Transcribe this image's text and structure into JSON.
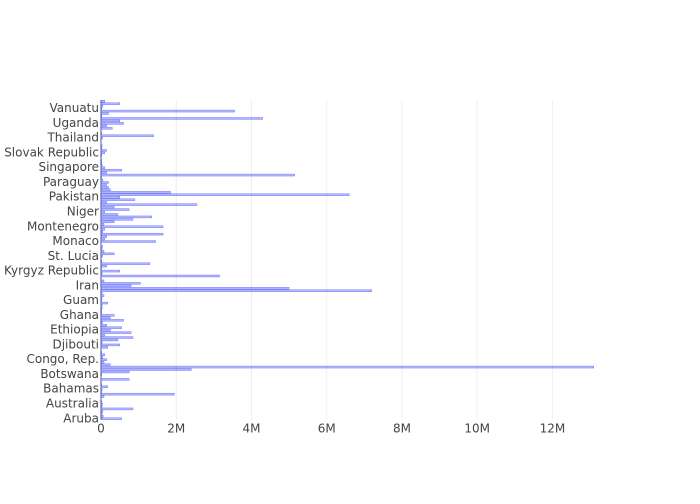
{
  "chart_data": {
    "type": "barh",
    "categories": [
      "Aruba",
      null,
      null,
      null,
      null,
      null,
      "Australia",
      null,
      null,
      null,
      null,
      null,
      "Bahamas",
      null,
      null,
      null,
      null,
      null,
      "Botswana",
      null,
      null,
      null,
      null,
      null,
      "Congo, Rep.",
      null,
      null,
      null,
      null,
      null,
      "Djibouti",
      null,
      null,
      null,
      null,
      null,
      "Ethiopia",
      null,
      null,
      null,
      null,
      null,
      "Ghana",
      null,
      null,
      null,
      null,
      null,
      "Guam",
      null,
      null,
      null,
      null,
      null,
      "Iran",
      null,
      null,
      null,
      null,
      null,
      "Kyrgyz Republic",
      null,
      null,
      null,
      null,
      null,
      "St. Lucia",
      null,
      null,
      null,
      null,
      null,
      "Monaco",
      null,
      null,
      null,
      null,
      null,
      "Montenegro",
      null,
      null,
      null,
      null,
      null,
      "Niger",
      null,
      null,
      null,
      null,
      null,
      "Pakistan",
      null,
      null,
      null,
      null,
      null,
      "Paraguay",
      null,
      null,
      null,
      null,
      null,
      "Singapore",
      null,
      null,
      null,
      null,
      null,
      "Slovak Republic",
      null,
      null,
      null,
      null,
      null,
      "Thailand",
      null,
      null,
      null,
      null,
      null,
      "Uganda",
      null,
      null,
      null,
      null,
      null,
      "Vanuatu",
      null,
      null,
      null
    ],
    "values": [
      550000,
      60000,
      30000,
      50000,
      850000,
      30000,
      40000,
      20000,
      10000,
      80000,
      1950000,
      20000,
      30000,
      180000,
      20000,
      10000,
      750000,
      10000,
      20000,
      750000,
      2400000,
      13100000,
      250000,
      80000,
      150000,
      50000,
      100000,
      20000,
      10000,
      180000,
      500000,
      30000,
      450000,
      850000,
      100000,
      800000,
      250000,
      550000,
      150000,
      40000,
      600000,
      250000,
      350000,
      20000,
      20000,
      30000,
      30000,
      180000,
      20000,
      30000,
      80000,
      30000,
      7200000,
      5000000,
      800000,
      1050000,
      80000,
      10000,
      3150000,
      30000,
      500000,
      20000,
      150000,
      1300000,
      20000,
      10000,
      40000,
      350000,
      80000,
      30000,
      40000,
      10000,
      1450000,
      100000,
      150000,
      1650000,
      50000,
      100000,
      1650000,
      80000,
      350000,
      850000,
      1350000,
      450000,
      100000,
      750000,
      350000,
      2550000,
      150000,
      900000,
      500000,
      6600000,
      1850000,
      250000,
      200000,
      150000,
      200000,
      50000,
      20000,
      5150000,
      150000,
      550000,
      100000,
      30000,
      20000,
      20000,
      10000,
      20000,
      100000,
      150000,
      20000,
      30000,
      10000,
      10000,
      40000,
      1400000,
      20000,
      10000,
      300000,
      150000,
      600000,
      500000,
      4300000,
      20000,
      200000,
      3550000,
      20000,
      50000,
      500000,
      100000
    ],
    "color": "#636efa",
    "xlim": [
      0,
      13770000
    ],
    "xticks": [
      0,
      {
        "value": 2000000,
        "label": "2M"
      },
      {
        "value": 4000000,
        "label": "4M"
      },
      {
        "value": 6000000,
        "label": "6M"
      },
      {
        "value": 8000000,
        "label": "8M"
      },
      {
        "value": 10000000,
        "label": "10M"
      },
      {
        "value": 12000000,
        "label": "12M"
      }
    ],
    "grid": true
  }
}
